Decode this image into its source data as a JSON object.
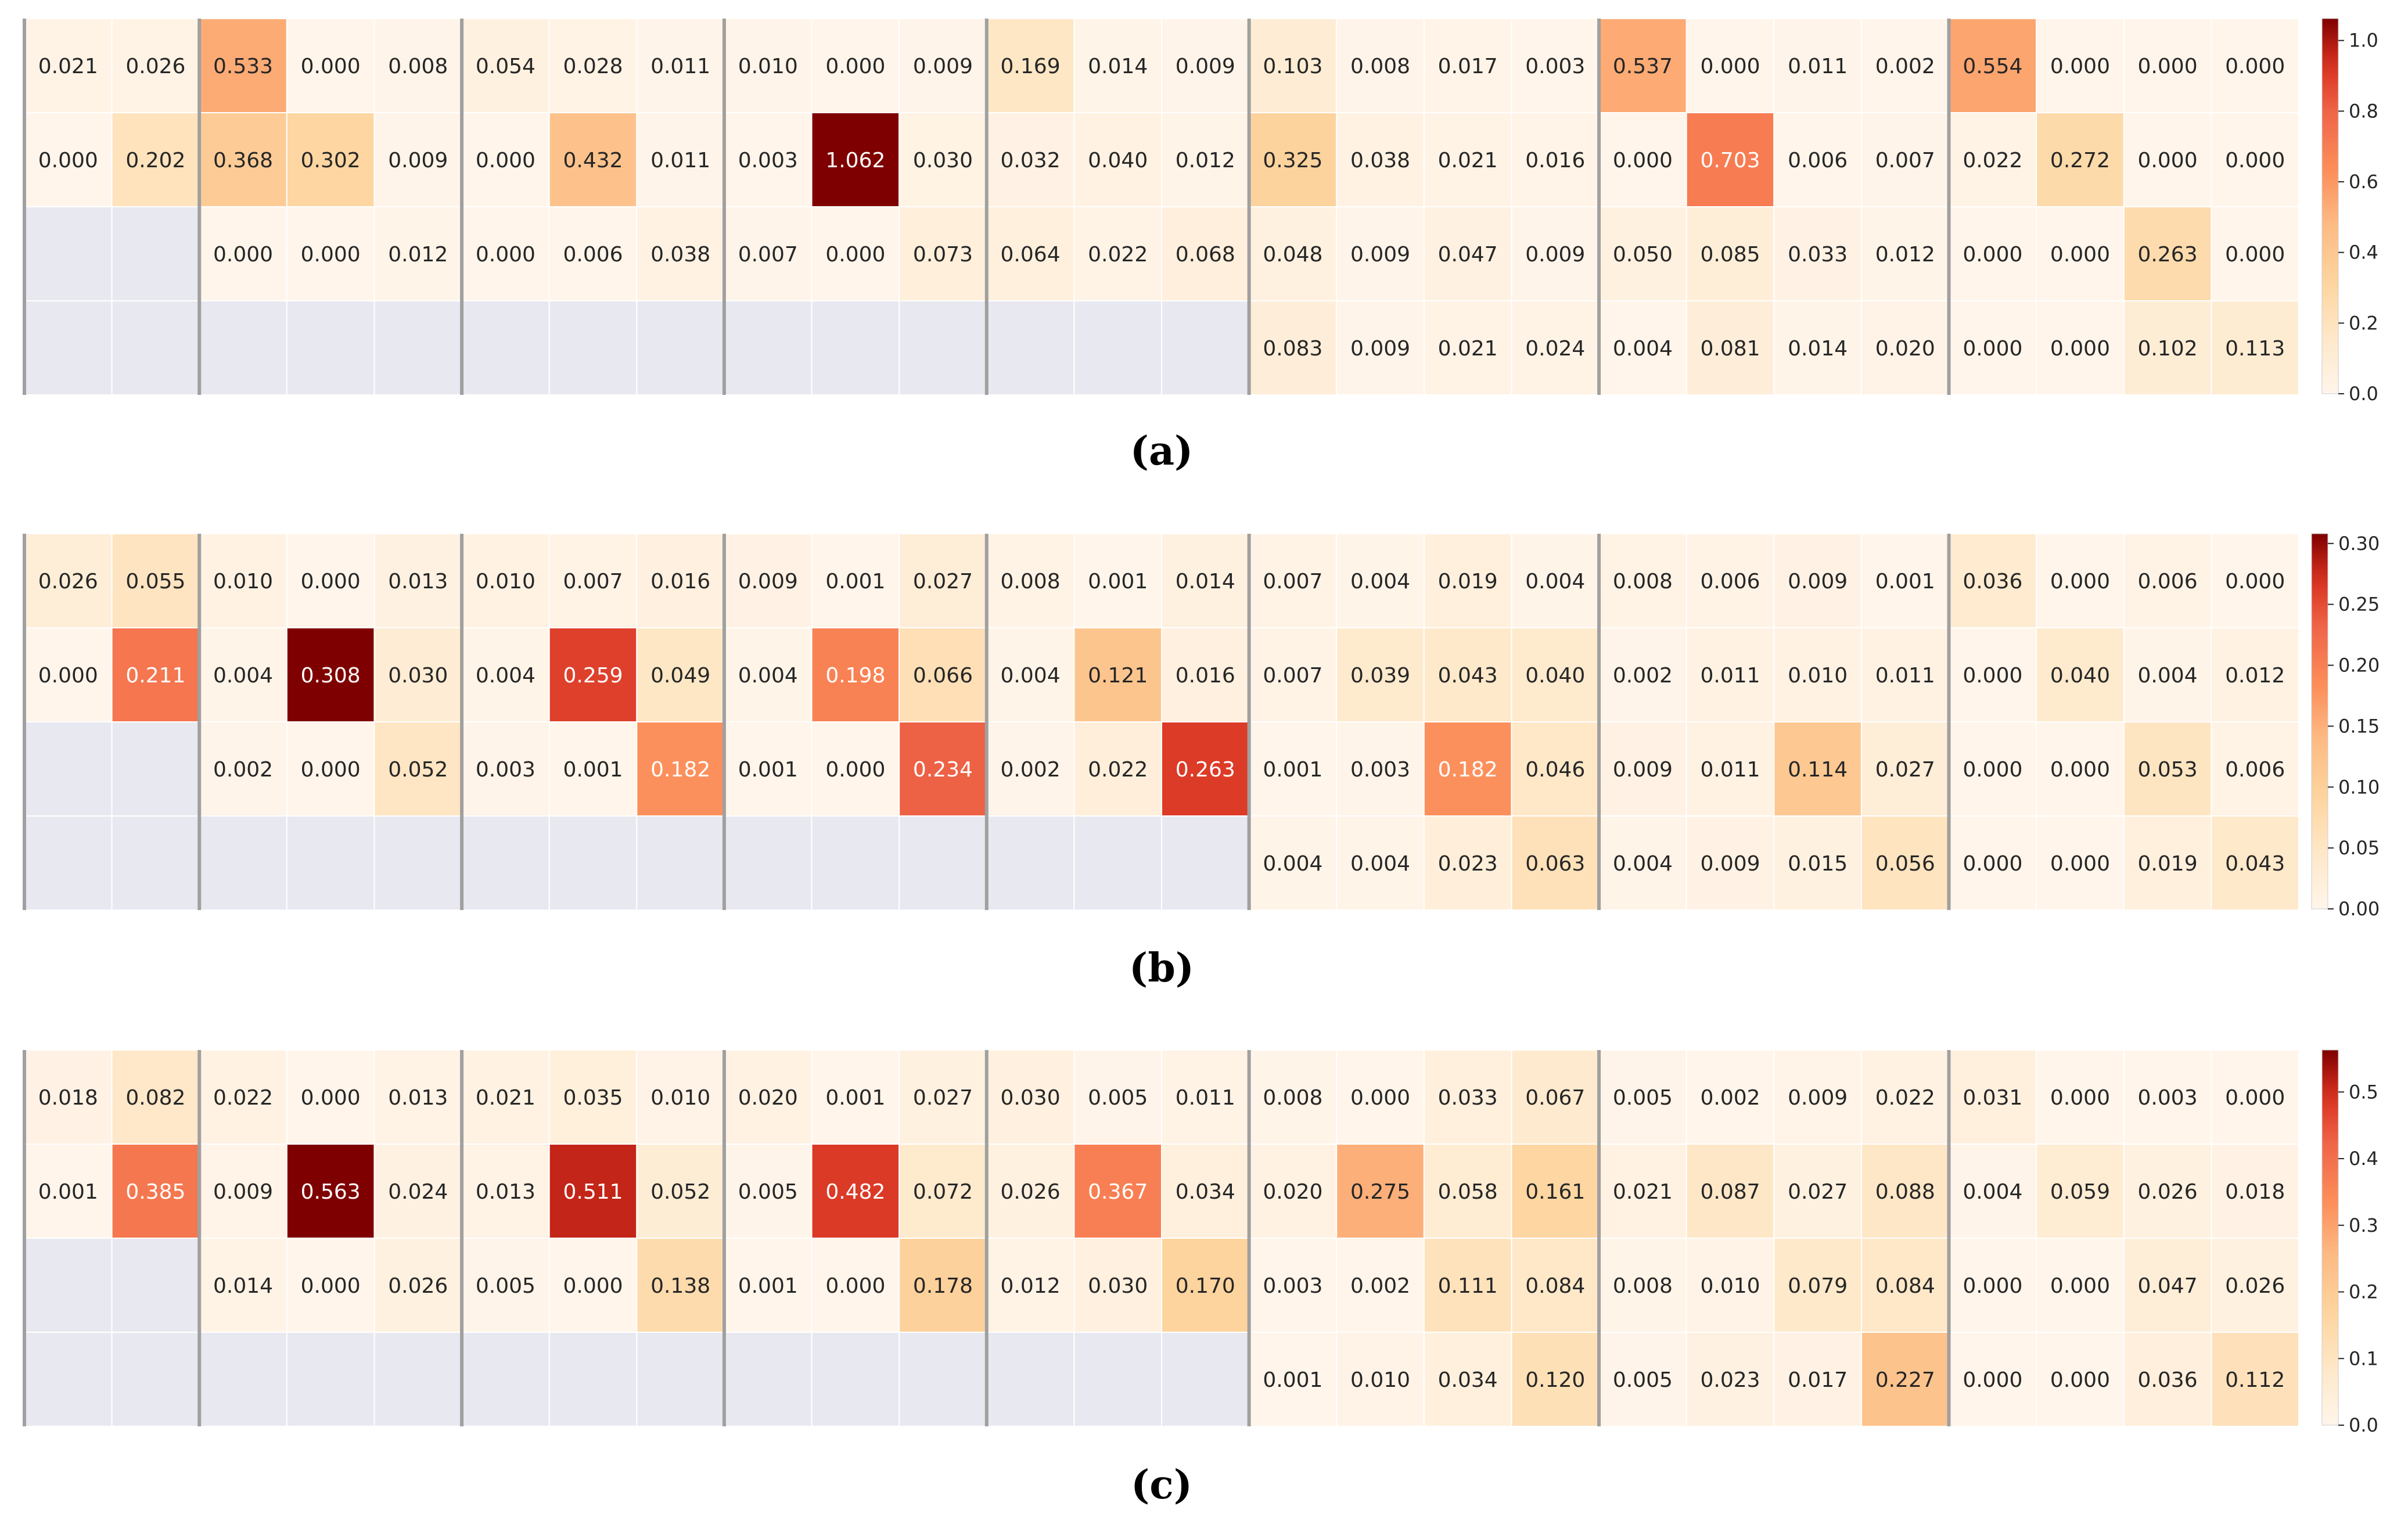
{
  "chart_data": [
    {
      "type": "heatmap",
      "caption": "(a)",
      "groups": [
        2,
        3,
        3,
        3,
        3,
        4,
        4,
        4
      ],
      "rows": [
        [
          "0.021",
          "0.026",
          "0.533",
          "0.000",
          "0.008",
          "0.054",
          "0.028",
          "0.011",
          "0.010",
          "0.000",
          "0.009",
          "0.169",
          "0.014",
          "0.009",
          "0.103",
          "0.008",
          "0.017",
          "0.003",
          "0.537",
          "0.000",
          "0.011",
          "0.002",
          "0.554",
          "0.000",
          "0.000",
          "0.000"
        ],
        [
          "0.000",
          "0.202",
          "0.368",
          "0.302",
          "0.009",
          "0.000",
          "0.432",
          "0.011",
          "0.003",
          "1.062",
          "0.030",
          "0.032",
          "0.040",
          "0.012",
          "0.325",
          "0.038",
          "0.021",
          "0.016",
          "0.000",
          "0.703",
          "0.006",
          "0.007",
          "0.022",
          "0.272",
          "0.000",
          "0.000"
        ],
        [
          null,
          null,
          "0.000",
          "0.000",
          "0.012",
          "0.000",
          "0.006",
          "0.038",
          "0.007",
          "0.000",
          "0.073",
          "0.064",
          "0.022",
          "0.068",
          "0.048",
          "0.009",
          "0.047",
          "0.009",
          "0.050",
          "0.085",
          "0.033",
          "0.012",
          "0.000",
          "0.000",
          "0.263",
          "0.000"
        ],
        [
          null,
          null,
          null,
          null,
          null,
          null,
          null,
          null,
          null,
          null,
          null,
          null,
          null,
          null,
          "0.083",
          "0.009",
          "0.021",
          "0.024",
          "0.004",
          "0.081",
          "0.014",
          "0.020",
          "0.000",
          "0.000",
          "0.102",
          "0.113"
        ]
      ],
      "vmin": 0,
      "vmax": 1.062,
      "colorbar_ticks": [
        "0.0",
        "0.2",
        "0.4",
        "0.6",
        "0.8",
        "1.0"
      ]
    },
    {
      "type": "heatmap",
      "caption": "(b)",
      "groups": [
        2,
        3,
        3,
        3,
        3,
        4,
        4,
        4
      ],
      "rows": [
        [
          "0.026",
          "0.055",
          "0.010",
          "0.000",
          "0.013",
          "0.010",
          "0.007",
          "0.016",
          "0.009",
          "0.001",
          "0.027",
          "0.008",
          "0.001",
          "0.014",
          "0.007",
          "0.004",
          "0.019",
          "0.004",
          "0.008",
          "0.006",
          "0.009",
          "0.001",
          "0.036",
          "0.000",
          "0.006",
          "0.000"
        ],
        [
          "0.000",
          "0.211",
          "0.004",
          "0.308",
          "0.030",
          "0.004",
          "0.259",
          "0.049",
          "0.004",
          "0.198",
          "0.066",
          "0.004",
          "0.121",
          "0.016",
          "0.007",
          "0.039",
          "0.043",
          "0.040",
          "0.002",
          "0.011",
          "0.010",
          "0.011",
          "0.000",
          "0.040",
          "0.004",
          "0.012"
        ],
        [
          null,
          null,
          "0.002",
          "0.000",
          "0.052",
          "0.003",
          "0.001",
          "0.182",
          "0.001",
          "0.000",
          "0.234",
          "0.002",
          "0.022",
          "0.263",
          "0.001",
          "0.003",
          "0.182",
          "0.046",
          "0.009",
          "0.011",
          "0.114",
          "0.027",
          "0.000",
          "0.000",
          "0.053",
          "0.006"
        ],
        [
          null,
          null,
          null,
          null,
          null,
          null,
          null,
          null,
          null,
          null,
          null,
          null,
          null,
          null,
          "0.004",
          "0.004",
          "0.023",
          "0.063",
          "0.004",
          "0.009",
          "0.015",
          "0.056",
          "0.000",
          "0.000",
          "0.019",
          "0.043"
        ]
      ],
      "vmin": 0,
      "vmax": 0.308,
      "colorbar_ticks": [
        "0.00",
        "0.05",
        "0.10",
        "0.15",
        "0.20",
        "0.25",
        "0.30"
      ]
    },
    {
      "type": "heatmap",
      "caption": "(c)",
      "groups": [
        2,
        3,
        3,
        3,
        3,
        4,
        4,
        4
      ],
      "rows": [
        [
          "0.018",
          "0.082",
          "0.022",
          "0.000",
          "0.013",
          "0.021",
          "0.035",
          "0.010",
          "0.020",
          "0.001",
          "0.027",
          "0.030",
          "0.005",
          "0.011",
          "0.008",
          "0.000",
          "0.033",
          "0.067",
          "0.005",
          "0.002",
          "0.009",
          "0.022",
          "0.031",
          "0.000",
          "0.003",
          "0.000"
        ],
        [
          "0.001",
          "0.385",
          "0.009",
          "0.563",
          "0.024",
          "0.013",
          "0.511",
          "0.052",
          "0.005",
          "0.482",
          "0.072",
          "0.026",
          "0.367",
          "0.034",
          "0.020",
          "0.275",
          "0.058",
          "0.161",
          "0.021",
          "0.087",
          "0.027",
          "0.088",
          "0.004",
          "0.059",
          "0.026",
          "0.018"
        ],
        [
          null,
          null,
          "0.014",
          "0.000",
          "0.026",
          "0.005",
          "0.000",
          "0.138",
          "0.001",
          "0.000",
          "0.178",
          "0.012",
          "0.030",
          "0.170",
          "0.003",
          "0.002",
          "0.111",
          "0.084",
          "0.008",
          "0.010",
          "0.079",
          "0.084",
          "0.000",
          "0.000",
          "0.047",
          "0.026"
        ],
        [
          null,
          null,
          null,
          null,
          null,
          null,
          null,
          null,
          null,
          null,
          null,
          null,
          null,
          null,
          "0.001",
          "0.010",
          "0.034",
          "0.120",
          "0.005",
          "0.023",
          "0.017",
          "0.227",
          "0.000",
          "0.000",
          "0.036",
          "0.112"
        ]
      ],
      "vmin": 0,
      "vmax": 0.563,
      "colorbar_ticks": [
        "0.0",
        "0.1",
        "0.2",
        "0.3",
        "0.4",
        "0.5"
      ]
    }
  ],
  "colors": {
    "missing": "#e8e8f0",
    "separator": "#a0a0a0",
    "colormap_low": "#fff5eb",
    "colormap_high": "#7f0000",
    "text_dark": "#262626",
    "text_light": "#ffffff"
  }
}
